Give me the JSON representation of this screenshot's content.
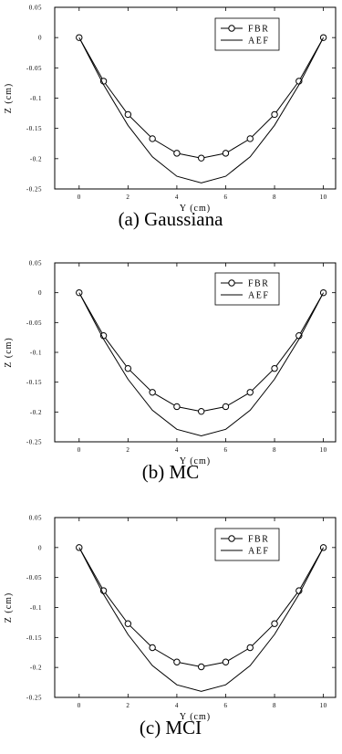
{
  "chart_data": [
    {
      "type": "line",
      "caption": "(a) Gaussiana",
      "xlabel": "Y (cm)",
      "ylabel": "Z (cm)",
      "xlim": [
        -1,
        10.5
      ],
      "ylim": [
        -0.25,
        0.05
      ],
      "xticks": [
        0,
        2,
        4,
        6,
        8,
        10
      ],
      "yticks": [
        0.05,
        0,
        -0.05,
        -0.1,
        -0.15,
        -0.2,
        -0.25
      ],
      "ytick_labels": [
        "0.05",
        "0",
        "-0.05",
        "-0.1",
        "-0.15",
        "-0.2",
        "-0.25"
      ],
      "grid": false,
      "legend": "top-right",
      "series": [
        {
          "name": "FBR",
          "marker": "circle",
          "x": [
            0,
            1,
            2,
            3,
            4,
            5,
            6,
            7,
            8,
            9,
            10
          ],
          "y": [
            0,
            -0.072,
            -0.127,
            -0.167,
            -0.191,
            -0.199,
            -0.191,
            -0.167,
            -0.127,
            -0.072,
            0
          ]
        },
        {
          "name": "AEF",
          "marker": "none",
          "x": [
            0,
            1,
            2,
            3,
            4,
            5,
            6,
            7,
            8,
            9,
            10
          ],
          "y": [
            0,
            -0.078,
            -0.145,
            -0.197,
            -0.229,
            -0.24,
            -0.229,
            -0.197,
            -0.145,
            -0.078,
            0
          ]
        }
      ]
    },
    {
      "type": "line",
      "caption": "(b) MC",
      "xlabel": "Y (cm)",
      "ylabel": "Z (cm)",
      "xlim": [
        -1,
        10.5
      ],
      "ylim": [
        -0.25,
        0.05
      ],
      "xticks": [
        0,
        2,
        4,
        6,
        8,
        10
      ],
      "yticks": [
        0.05,
        0,
        -0.05,
        -0.1,
        -0.15,
        -0.2,
        -0.25
      ],
      "ytick_labels": [
        "0.05",
        "0",
        "-0.05",
        "-0.1",
        "-0.15",
        "-0.2",
        "-0.25"
      ],
      "grid": false,
      "legend": "top-right",
      "series": [
        {
          "name": "FBR",
          "marker": "circle",
          "x": [
            0,
            1,
            2,
            3,
            4,
            5,
            6,
            7,
            8,
            9,
            10
          ],
          "y": [
            0,
            -0.072,
            -0.127,
            -0.167,
            -0.191,
            -0.199,
            -0.191,
            -0.167,
            -0.127,
            -0.072,
            0
          ]
        },
        {
          "name": "AEF",
          "marker": "none",
          "x": [
            0,
            1,
            2,
            3,
            4,
            5,
            6,
            7,
            8,
            9,
            10
          ],
          "y": [
            0,
            -0.078,
            -0.145,
            -0.197,
            -0.229,
            -0.24,
            -0.229,
            -0.197,
            -0.145,
            -0.078,
            0
          ]
        }
      ]
    },
    {
      "type": "line",
      "caption": "(c) MCI",
      "xlabel": "Y (cm)",
      "ylabel": "Z (cm)",
      "xlim": [
        -1,
        10.5
      ],
      "ylim": [
        -0.25,
        0.05
      ],
      "xticks": [
        0,
        2,
        4,
        6,
        8,
        10
      ],
      "yticks": [
        0.05,
        0,
        -0.05,
        -0.1,
        -0.15,
        -0.2,
        -0.25
      ],
      "ytick_labels": [
        "0.05",
        "0",
        "-0.05",
        "-0.1",
        "-0.15",
        "-0.2",
        "-0.25"
      ],
      "grid": false,
      "legend": "top-right",
      "series": [
        {
          "name": "FBR",
          "marker": "circle",
          "x": [
            0,
            1,
            2,
            3,
            4,
            5,
            6,
            7,
            8,
            9,
            10
          ],
          "y": [
            0,
            -0.072,
            -0.127,
            -0.167,
            -0.191,
            -0.199,
            -0.191,
            -0.167,
            -0.127,
            -0.072,
            0
          ]
        },
        {
          "name": "AEF",
          "marker": "none",
          "x": [
            0,
            1,
            2,
            3,
            4,
            5,
            6,
            7,
            8,
            9,
            10
          ],
          "y": [
            0,
            -0.078,
            -0.145,
            -0.197,
            -0.229,
            -0.24,
            -0.229,
            -0.197,
            -0.145,
            -0.078,
            0
          ]
        }
      ]
    }
  ]
}
